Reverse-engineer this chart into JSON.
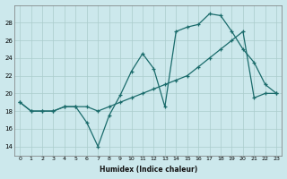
{
  "xlabel": "Humidex (Indice chaleur)",
  "ylabel": "",
  "bg_color": "#cce8ec",
  "grid_color": "#aacccc",
  "line_color": "#1a6b6b",
  "xlim": [
    -0.5,
    23.5
  ],
  "ylim": [
    13.0,
    30.0
  ],
  "xticks": [
    0,
    1,
    2,
    3,
    4,
    5,
    6,
    7,
    8,
    9,
    10,
    11,
    12,
    13,
    14,
    15,
    16,
    17,
    18,
    19,
    20,
    21,
    22,
    23
  ],
  "yticks": [
    14,
    16,
    18,
    20,
    22,
    24,
    26,
    28
  ],
  "line1_x": [
    0,
    1,
    2,
    3,
    4,
    5,
    6,
    7,
    8,
    9,
    10,
    11,
    12,
    13,
    14,
    15,
    16,
    17,
    18,
    19,
    20,
    21,
    22,
    23
  ],
  "line1_y": [
    19.0,
    18.0,
    18.0,
    18.0,
    18.5,
    18.5,
    16.7,
    14.0,
    17.5,
    19.8,
    22.5,
    24.5,
    22.8,
    18.5,
    27.0,
    27.5,
    27.8,
    29.0,
    28.8,
    27.0,
    25.0,
    23.5,
    21.0,
    20.0
  ],
  "line2_x": [
    0,
    1,
    2,
    3,
    4,
    5,
    6,
    7,
    8,
    9,
    10,
    11,
    12,
    13,
    14,
    15,
    16,
    17,
    18,
    19,
    20,
    21,
    22,
    23
  ],
  "line2_y": [
    19.0,
    18.0,
    18.0,
    18.0,
    18.5,
    18.5,
    18.5,
    18.0,
    18.5,
    19.0,
    19.5,
    20.0,
    20.5,
    21.0,
    21.5,
    22.0,
    23.0,
    24.0,
    25.0,
    26.0,
    27.0,
    19.5,
    20.0,
    20.0
  ]
}
